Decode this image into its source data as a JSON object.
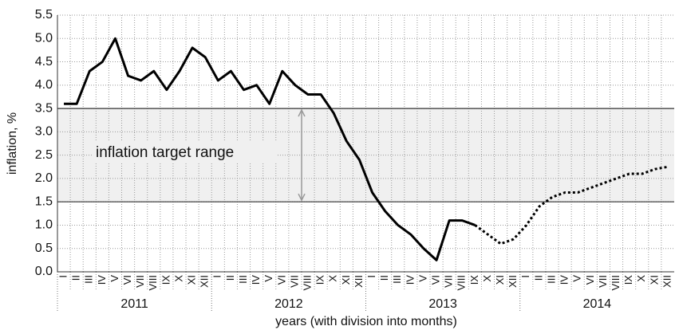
{
  "chart_data": {
    "type": "line",
    "y_label": "inflation, %",
    "x_label": "years (with division into months)",
    "categories": [
      "I",
      "II",
      "III",
      "IV",
      "V",
      "VI",
      "VII",
      "VIII",
      "IX",
      "X",
      "XI",
      "XII",
      "I",
      "II",
      "III",
      "IV",
      "V",
      "VI",
      "VII",
      "VIII",
      "IX",
      "X",
      "XI",
      "XII",
      "I",
      "II",
      "III",
      "IV",
      "V",
      "VI",
      "VII",
      "VIII",
      "IX",
      "X",
      "XI",
      "XII",
      "I",
      "II",
      "III",
      "IV",
      "V",
      "VI",
      "VII",
      "VIII",
      "IX",
      "X",
      "XI",
      "XII"
    ],
    "years": [
      "2011",
      "2012",
      "2013",
      "2014"
    ],
    "series": [
      {
        "color": "#000000",
        "style": "solid",
        "values": [
          3.6,
          3.6,
          4.3,
          4.5,
          5.0,
          4.2,
          4.1,
          4.3,
          3.9,
          4.3,
          4.8,
          4.6,
          4.1,
          4.3,
          3.9,
          4.0,
          3.6,
          4.3,
          4.0,
          3.8,
          3.8,
          3.4,
          2.8,
          2.4,
          1.7,
          1.3,
          1.0,
          0.8,
          0.5,
          0.25,
          1.1,
          1.1,
          1.0,
          null,
          null,
          null,
          null,
          null,
          null,
          null,
          null,
          null,
          null,
          null,
          null,
          null,
          null,
          null
        ]
      },
      {
        "color": "#000000",
        "style": "dotted",
        "values": [
          null,
          null,
          null,
          null,
          null,
          null,
          null,
          null,
          null,
          null,
          null,
          null,
          null,
          null,
          null,
          null,
          null,
          null,
          null,
          null,
          null,
          null,
          null,
          null,
          null,
          null,
          null,
          null,
          null,
          null,
          null,
          null,
          1.0,
          0.8,
          0.6,
          0.7,
          1.0,
          1.4,
          1.6,
          1.7,
          1.7,
          1.8,
          1.9,
          2.0,
          2.1,
          2.1,
          2.2,
          2.25
        ]
      }
    ],
    "target_range": {
      "label": "inflation target range",
      "low": 1.5,
      "high": 3.5,
      "color": "#f0f0f0"
    },
    "ylim": [
      0,
      5.5
    ],
    "yticks": [
      {
        "value": 0,
        "label": "0.0"
      },
      0.5,
      {
        "value": 1,
        "label": "1.0"
      },
      1.5,
      {
        "value": 2,
        "label": "2.0"
      },
      2.5,
      {
        "value": 3,
        "label": "3.0"
      },
      3.5,
      {
        "value": 4,
        "label": "4.0"
      },
      4.5,
      {
        "value": 5,
        "label": "5.0"
      },
      5.5
    ],
    "grid": true
  }
}
